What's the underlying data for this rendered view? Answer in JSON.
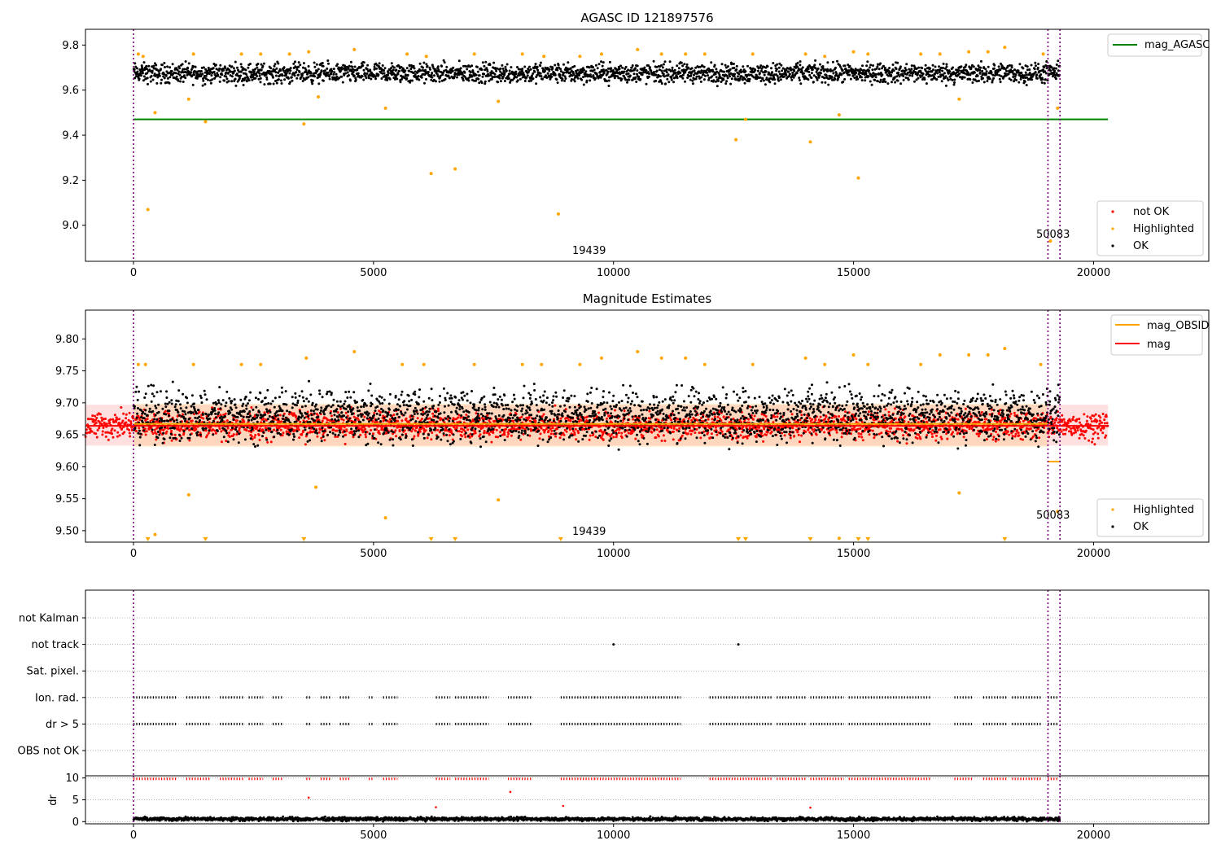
{
  "chart_data": [
    {
      "type": "scatter",
      "title": "AGASC ID 121897576",
      "xlabel": "",
      "ylabel": "",
      "xlim": [
        -1000,
        22400
      ],
      "ylim": [
        8.84,
        9.87
      ],
      "xticks": [
        0,
        5000,
        10000,
        15000,
        20000
      ],
      "xtick_labels": [
        "0",
        "5000",
        "10000",
        "15000",
        "20000"
      ],
      "yticks": [
        9.0,
        9.2,
        9.4,
        9.6,
        9.8
      ],
      "ytick_labels": [
        "9.0",
        "9.2",
        "9.4",
        "9.6",
        "9.8"
      ],
      "obs_boundaries": [
        0,
        19050,
        19300
      ],
      "annotations": [
        {
          "text": "19439",
          "x": 9500,
          "y": 8.88
        },
        {
          "text": "50083",
          "x": 19100,
          "y": 8.95
        }
      ],
      "series": [
        {
          "name": "mag_AGASC",
          "style": "line",
          "color": "#008000",
          "x": [
            0,
            20300
          ],
          "y": [
            9.47,
            9.47
          ]
        },
        {
          "name": "not OK",
          "style": "points",
          "color": "#ff0000",
          "x": [],
          "y": []
        },
        {
          "name": "Highlighted",
          "style": "points",
          "color": "#ffa500",
          "x": [
            100,
            200,
            300,
            450,
            1250,
            1150,
            1500,
            2250,
            2650,
            3250,
            3550,
            3650,
            3850,
            4600,
            5250,
            5700,
            6100,
            6200,
            6700,
            7100,
            7600,
            8100,
            8850,
            8550,
            9300,
            9750,
            10500,
            11000,
            11500,
            11900,
            12550,
            12750,
            12900,
            14000,
            14100,
            14400,
            14700,
            15000,
            15100,
            15300,
            16400,
            16800,
            17200,
            17400,
            17800,
            18150,
            18950,
            19100,
            19250
          ],
          "y": [
            9.76,
            9.75,
            9.07,
            9.5,
            9.76,
            9.56,
            9.46,
            9.76,
            9.76,
            9.76,
            9.45,
            9.77,
            9.57,
            9.78,
            9.52,
            9.76,
            9.75,
            9.23,
            9.25,
            9.76,
            9.55,
            9.76,
            9.05,
            9.75,
            9.75,
            9.76,
            9.78,
            9.76,
            9.76,
            9.76,
            9.38,
            9.47,
            9.76,
            9.76,
            9.37,
            9.75,
            9.49,
            9.77,
            9.21,
            9.76,
            9.76,
            9.76,
            9.56,
            9.77,
            9.77,
            9.79,
            9.76,
            8.93,
            9.52
          ]
        },
        {
          "name": "OK",
          "style": "band",
          "color": "#000000",
          "x": [
            0,
            19300
          ],
          "y_low": 9.61,
          "y_high": 9.74
        }
      ],
      "legend": {
        "placement": "bottom-right",
        "entries": [
          "not OK",
          "Highlighted",
          "OK"
        ]
      },
      "legend2": {
        "placement": "top-right",
        "entries": [
          "mag_AGASC"
        ]
      }
    },
    {
      "type": "scatter",
      "title": "Magnitude Estimates",
      "xlabel": "",
      "ylabel": "",
      "xlim": [
        -1000,
        22400
      ],
      "ylim": [
        9.482,
        9.845
      ],
      "xticks": [
        0,
        5000,
        10000,
        15000,
        20000
      ],
      "xtick_labels": [
        "0",
        "5000",
        "10000",
        "15000",
        "20000"
      ],
      "yticks": [
        9.5,
        9.55,
        9.6,
        9.65,
        9.7,
        9.75,
        9.8
      ],
      "ytick_labels": [
        "9.50",
        "9.55",
        "9.60",
        "9.65",
        "9.70",
        "9.75",
        "9.80"
      ],
      "obs_boundaries": [
        0,
        19050,
        19300
      ],
      "annotations": [
        {
          "text": "19439",
          "x": 9500,
          "y": 9.497
        },
        {
          "text": "50083",
          "x": 19100,
          "y": 9.521
        }
      ],
      "series": [
        {
          "name": "mag_OBSID",
          "style": "line",
          "color": "#ffa500",
          "x": [
            0,
            19050
          ],
          "y": [
            9.667,
            9.667
          ]
        },
        {
          "name": "mag_OBSID_2",
          "style": "line",
          "color": "#ffa500",
          "x": [
            19050,
            19300
          ],
          "y": [
            9.608,
            9.608
          ]
        },
        {
          "name": "mag",
          "style": "line",
          "color": "#ff0000",
          "x": [
            -1000,
            20300
          ],
          "y": [
            9.664,
            9.664
          ]
        },
        {
          "name": "mag_band",
          "style": "band",
          "color": "#ff0000",
          "x": [
            -1000,
            20300
          ],
          "y_low": 9.633,
          "y_high": 9.697
        },
        {
          "name": "Highlighted",
          "style": "points",
          "color": "#ffa500",
          "x": [
            100,
            250,
            450,
            1150,
            1250,
            2250,
            2650,
            3600,
            3800,
            4600,
            5250,
            5600,
            6050,
            7100,
            7600,
            8100,
            8500,
            9300,
            9750,
            10500,
            11000,
            11500,
            11900,
            12900,
            14000,
            14400,
            14700,
            15000,
            15300,
            16400,
            16800,
            17200,
            17400,
            17800,
            18150,
            18900,
            19250
          ],
          "y": [
            9.76,
            9.76,
            9.494,
            9.556,
            9.76,
            9.76,
            9.76,
            9.77,
            9.568,
            9.78,
            9.52,
            9.76,
            9.76,
            9.76,
            9.548,
            9.76,
            9.76,
            9.76,
            9.77,
            9.78,
            9.77,
            9.77,
            9.76,
            9.76,
            9.77,
            9.76,
            9.488,
            9.775,
            9.76,
            9.76,
            9.775,
            9.559,
            9.775,
            9.775,
            9.785,
            9.76,
            9.53
          ]
        },
        {
          "name": "Highlighted_below",
          "style": "triangles",
          "color": "#ffa500",
          "x": [
            300,
            1500,
            3550,
            6200,
            6700,
            8900,
            12600,
            12750,
            14100,
            15100,
            15300,
            18150
          ],
          "y": [
            9.486,
            9.486,
            9.486,
            9.486,
            9.486,
            9.486,
            9.486,
            9.486,
            9.486,
            9.486,
            9.486,
            9.486
          ]
        },
        {
          "name": "OK",
          "style": "band",
          "color": "#000000",
          "x": [
            0,
            19300
          ],
          "y_low": 9.62,
          "y_high": 9.74
        }
      ],
      "legend": {
        "placement": "bottom-right",
        "entries": [
          "Highlighted",
          "OK"
        ]
      },
      "legend2": {
        "placement": "top-right",
        "entries": [
          "mag_OBSID",
          "mag"
        ]
      }
    },
    {
      "type": "scatter",
      "title": "",
      "xlabel": "",
      "ylabel": "",
      "xlim": [
        -1000,
        22400
      ],
      "category_axis": [
        "not Kalman",
        "not track",
        "Sat. pixel.",
        "Ion. rad.",
        "dr > 5",
        "OBS not OK"
      ],
      "obs_boundaries": [
        0,
        19050,
        19300
      ],
      "series": [
        {
          "name": "not track",
          "style": "points",
          "color": "#000000",
          "x": [
            10000,
            12600
          ],
          "y": [
            "not track",
            "not track"
          ]
        },
        {
          "name": "Ion. rad.",
          "style": "dashes",
          "color": "#000000",
          "segments": [
            [
              0,
              900
            ],
            [
              1100,
              1600
            ],
            [
              1800,
              2300
            ],
            [
              2400,
              2700
            ],
            [
              2900,
              3100
            ],
            [
              3600,
              3700
            ],
            [
              3900,
              4100
            ],
            [
              4300,
              4500
            ],
            [
              4900,
              5000
            ],
            [
              5200,
              5500
            ],
            [
              6300,
              6600
            ],
            [
              6700,
              7400
            ],
            [
              7800,
              8300
            ],
            [
              8900,
              9600
            ],
            [
              9600,
              11400
            ],
            [
              12000,
              13300
            ],
            [
              13400,
              14000
            ],
            [
              14100,
              14800
            ],
            [
              14900,
              16600
            ],
            [
              17100,
              17500
            ],
            [
              17700,
              18200
            ],
            [
              18300,
              18900
            ],
            [
              19050,
              19250
            ]
          ]
        },
        {
          "name": "dr > 5",
          "style": "dashes",
          "color": "#000000",
          "segments": [
            [
              0,
              900
            ],
            [
              1100,
              1600
            ],
            [
              1800,
              2300
            ],
            [
              2400,
              2700
            ],
            [
              2900,
              3100
            ],
            [
              3600,
              3700
            ],
            [
              3900,
              4100
            ],
            [
              4300,
              4500
            ],
            [
              4900,
              5000
            ],
            [
              5200,
              5500
            ],
            [
              6300,
              6600
            ],
            [
              6700,
              7400
            ],
            [
              7800,
              8300
            ],
            [
              8900,
              9600
            ],
            [
              9600,
              11400
            ],
            [
              12000,
              13300
            ],
            [
              13400,
              14000
            ],
            [
              14100,
              14800
            ],
            [
              14900,
              16600
            ],
            [
              17100,
              17500
            ],
            [
              17700,
              18200
            ],
            [
              18300,
              18900
            ],
            [
              19050,
              19250
            ]
          ]
        }
      ]
    },
    {
      "type": "scatter",
      "title": "",
      "xlabel": "",
      "ylabel": "dr",
      "xlim": [
        -1000,
        22400
      ],
      "ylim": [
        -0.5,
        10.5
      ],
      "xticks": [
        0,
        5000,
        10000,
        15000,
        20000
      ],
      "xtick_labels": [
        "0",
        "5000",
        "10000",
        "15000",
        "20000"
      ],
      "yticks": [
        0,
        5,
        10
      ],
      "ytick_labels": [
        "0",
        "5",
        "10"
      ],
      "obs_boundaries": [
        0,
        19050,
        19300
      ],
      "series": [
        {
          "name": "dr clipped",
          "style": "triangles-up",
          "color": "#ff0000",
          "segments": [
            [
              0,
              900
            ],
            [
              1100,
              1600
            ],
            [
              1800,
              2300
            ],
            [
              2400,
              2700
            ],
            [
              2900,
              3100
            ],
            [
              3600,
              3700
            ],
            [
              3900,
              4100
            ],
            [
              4300,
              4500
            ],
            [
              4900,
              5000
            ],
            [
              5200,
              5500
            ],
            [
              6300,
              6600
            ],
            [
              6700,
              7400
            ],
            [
              7800,
              8300
            ],
            [
              8900,
              9600
            ],
            [
              9600,
              11400
            ],
            [
              12000,
              13300
            ],
            [
              13400,
              14000
            ],
            [
              14100,
              14800
            ],
            [
              14900,
              16600
            ],
            [
              17100,
              17500
            ],
            [
              17700,
              18200
            ],
            [
              18300,
              18900
            ],
            [
              19050,
              19250
            ]
          ],
          "y": 9.8
        },
        {
          "name": "dr outliers",
          "style": "points",
          "color": "#ff0000",
          "x": [
            3650,
            7850,
            6300,
            8950,
            14100
          ],
          "y": [
            5.5,
            6.8,
            3.3,
            3.6,
            3.2
          ]
        },
        {
          "name": "dr",
          "style": "band",
          "color": "#000000",
          "x": [
            0,
            19300
          ],
          "y_low": 0.0,
          "y_high": 1.2
        }
      ]
    }
  ]
}
